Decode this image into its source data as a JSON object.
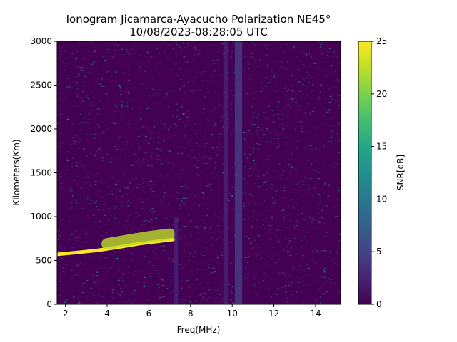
{
  "chart_data": {
    "type": "heatmap",
    "title": "Ionogram Jicamarca-Ayacucho Polarization NE45°",
    "subtitle": "10/08/2023-08:28:05 UTC",
    "xlabel": "Freq(MHz)",
    "ylabel": "Kilometers(Km)",
    "xlim": [
      1.6,
      15.2
    ],
    "ylim": [
      0,
      3000
    ],
    "xticks": [
      2,
      4,
      6,
      8,
      10,
      12,
      14
    ],
    "yticks": [
      0,
      500,
      1000,
      1500,
      2000,
      2500,
      3000
    ],
    "colorbar": {
      "label": "SNR[dB]",
      "range": [
        0,
        25
      ],
      "ticks": [
        0,
        5,
        10,
        15,
        20,
        25
      ],
      "colormap": "viridis"
    },
    "grid": false,
    "features": [
      {
        "name": "echo trace",
        "points": [
          [
            1.6,
            570
          ],
          [
            2.5,
            590
          ],
          [
            3.5,
            615
          ],
          [
            4.5,
            650
          ],
          [
            5.5,
            690
          ],
          [
            6.5,
            720
          ],
          [
            7.2,
            740
          ]
        ],
        "snr": 24,
        "thickness_km": 40
      },
      {
        "name": "spread echo",
        "points": [
          [
            4.0,
            690
          ],
          [
            5.0,
            730
          ],
          [
            6.0,
            770
          ],
          [
            7.0,
            800
          ]
        ],
        "snr": 22,
        "thickness_km": 130
      },
      {
        "name": "vertical band",
        "points": [
          [
            10.3,
            0
          ],
          [
            10.3,
            3000
          ]
        ],
        "snr": 4,
        "thickness_mhz": 0.35
      },
      {
        "name": "vertical band",
        "points": [
          [
            9.7,
            0
          ],
          [
            9.7,
            3000
          ]
        ],
        "snr": 3,
        "thickness_mhz": 0.25
      },
      {
        "name": "vertical band",
        "points": [
          [
            7.3,
            0
          ],
          [
            7.3,
            1000
          ]
        ],
        "snr": 3,
        "thickness_mhz": 0.2
      }
    ]
  }
}
